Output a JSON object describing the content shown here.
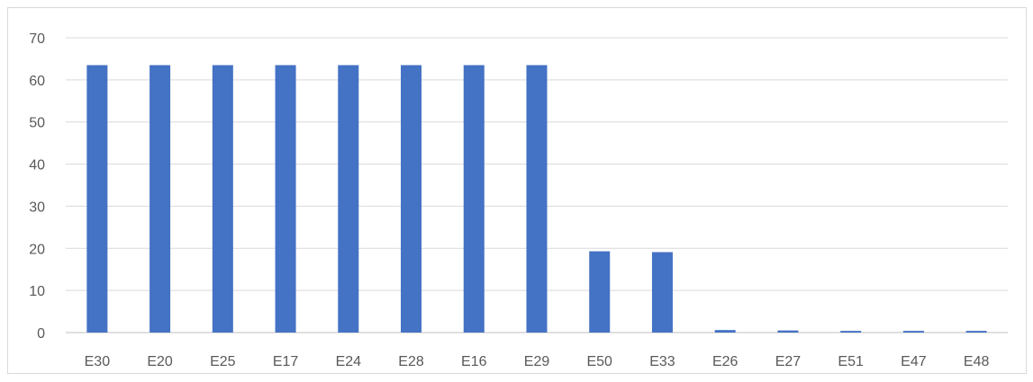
{
  "chart_data": {
    "type": "bar",
    "title": "",
    "xlabel": "",
    "ylabel": "",
    "categories": [
      "E30",
      "E20",
      "E25",
      "E17",
      "E24",
      "E28",
      "E16",
      "E29",
      "E50",
      "E33",
      "E26",
      "E27",
      "E51",
      "E47",
      "E48"
    ],
    "values": [
      63.5,
      63.5,
      63.5,
      63.5,
      63.5,
      63.5,
      63.5,
      63.5,
      19.3,
      19.1,
      0.6,
      0.5,
      0.4,
      0.4,
      0.4
    ],
    "ylim": [
      0,
      70
    ],
    "yticks": [
      0,
      10,
      20,
      30,
      40,
      50,
      60,
      70
    ],
    "grid": true,
    "legend": "none",
    "colors": {
      "bar": "#4472C4",
      "grid": "#d9d9d9",
      "axis": "#bfbfbf",
      "text": "#595959"
    }
  }
}
